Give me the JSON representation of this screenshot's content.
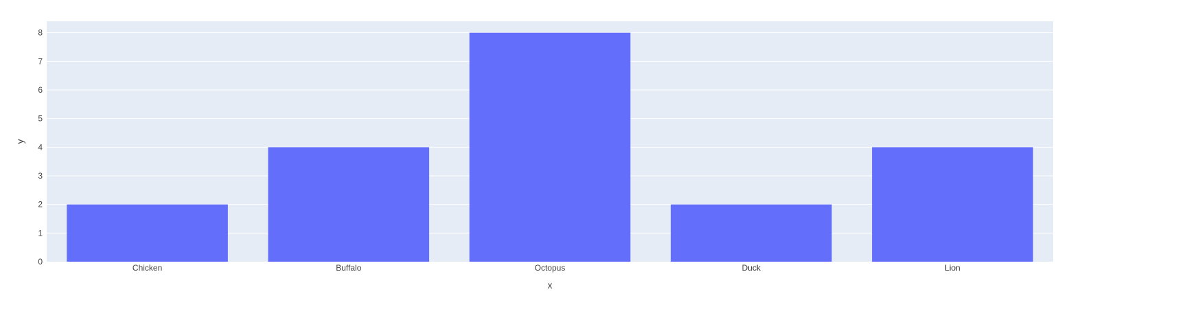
{
  "chart_data": {
    "type": "bar",
    "categories": [
      "Chicken",
      "Buffalo",
      "Octopus",
      "Duck",
      "Lion"
    ],
    "values": [
      2,
      4,
      8,
      2,
      4
    ],
    "title": "",
    "xlabel": "x",
    "ylabel": "y",
    "ylim": [
      0,
      8.4
    ],
    "yticks": [
      0,
      1,
      2,
      3,
      4,
      5,
      6,
      7,
      8
    ],
    "grid": true,
    "legend": "none",
    "colors": {
      "bar": "#636efa",
      "plot_background": "#e5ecf6",
      "grid": "#ffffff",
      "text": "#444444"
    }
  }
}
